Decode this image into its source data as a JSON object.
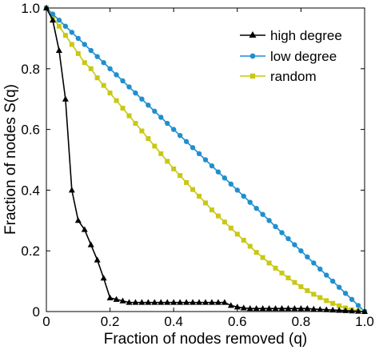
{
  "chart_data": {
    "type": "line",
    "title": "",
    "xlabel": "Fraction of nodes removed (q)",
    "ylabel": "Fraction of nodes S(q)",
    "xlim": [
      0,
      1
    ],
    "ylim": [
      0,
      1
    ],
    "xticks": [
      "0",
      "0.2",
      "0.4",
      "0.6",
      "0.8",
      "1.0"
    ],
    "yticks": [
      "0",
      "0.2",
      "0.4",
      "0.6",
      "0.8",
      "1.0"
    ],
    "grid": false,
    "legend_position": "top-right",
    "series": [
      {
        "name": "high degree",
        "color": "#000000",
        "marker": "triangle",
        "x": [
          0,
          0.02,
          0.04,
          0.06,
          0.08,
          0.1,
          0.12,
          0.14,
          0.16,
          0.18,
          0.2,
          0.22,
          0.24,
          0.26,
          0.28,
          0.3,
          0.32,
          0.34,
          0.36,
          0.38,
          0.4,
          0.42,
          0.44,
          0.46,
          0.48,
          0.5,
          0.52,
          0.54,
          0.56,
          0.58,
          0.6,
          0.62,
          0.64,
          0.66,
          0.68,
          0.7,
          0.72,
          0.74,
          0.76,
          0.78,
          0.8,
          0.82,
          0.84,
          0.86,
          0.88,
          0.9,
          0.92,
          0.94,
          0.96,
          0.98,
          1.0
        ],
        "y": [
          1.0,
          0.96,
          0.86,
          0.7,
          0.4,
          0.3,
          0.27,
          0.22,
          0.17,
          0.11,
          0.045,
          0.04,
          0.035,
          0.03,
          0.03,
          0.03,
          0.03,
          0.03,
          0.03,
          0.03,
          0.03,
          0.03,
          0.03,
          0.03,
          0.03,
          0.03,
          0.03,
          0.03,
          0.03,
          0.02,
          0.015,
          0.012,
          0.01,
          0.01,
          0.01,
          0.01,
          0.01,
          0.01,
          0.01,
          0.01,
          0.01,
          0.01,
          0.008,
          0.007,
          0.006,
          0.005,
          0.004,
          0.003,
          0.002,
          0.001,
          0.0
        ]
      },
      {
        "name": "low degree",
        "color": "#1f8fcf",
        "marker": "circle",
        "x": [
          0,
          0.02,
          0.04,
          0.06,
          0.08,
          0.1,
          0.12,
          0.14,
          0.16,
          0.18,
          0.2,
          0.22,
          0.24,
          0.26,
          0.28,
          0.3,
          0.32,
          0.34,
          0.36,
          0.38,
          0.4,
          0.42,
          0.44,
          0.46,
          0.48,
          0.5,
          0.52,
          0.54,
          0.56,
          0.58,
          0.6,
          0.62,
          0.64,
          0.66,
          0.68,
          0.7,
          0.72,
          0.74,
          0.76,
          0.78,
          0.8,
          0.82,
          0.84,
          0.86,
          0.88,
          0.9,
          0.92,
          0.94,
          0.96,
          0.98,
          1.0
        ],
        "y": [
          1.0,
          0.98,
          0.96,
          0.94,
          0.92,
          0.9,
          0.88,
          0.86,
          0.84,
          0.82,
          0.8,
          0.78,
          0.76,
          0.74,
          0.72,
          0.7,
          0.68,
          0.66,
          0.64,
          0.62,
          0.6,
          0.58,
          0.56,
          0.54,
          0.52,
          0.5,
          0.48,
          0.46,
          0.44,
          0.42,
          0.4,
          0.38,
          0.36,
          0.34,
          0.32,
          0.3,
          0.28,
          0.26,
          0.24,
          0.22,
          0.2,
          0.18,
          0.16,
          0.14,
          0.12,
          0.1,
          0.08,
          0.06,
          0.04,
          0.02,
          0.0
        ]
      },
      {
        "name": "random",
        "color": "#c8c814",
        "marker": "square",
        "x": [
          0,
          0.02,
          0.04,
          0.06,
          0.08,
          0.1,
          0.12,
          0.14,
          0.16,
          0.18,
          0.2,
          0.22,
          0.24,
          0.26,
          0.28,
          0.3,
          0.32,
          0.34,
          0.36,
          0.38,
          0.4,
          0.42,
          0.44,
          0.46,
          0.48,
          0.5,
          0.52,
          0.54,
          0.56,
          0.58,
          0.6,
          0.62,
          0.64,
          0.66,
          0.68,
          0.7,
          0.72,
          0.74,
          0.76,
          0.78,
          0.8,
          0.82,
          0.84,
          0.86,
          0.88,
          0.9,
          0.92,
          0.94,
          0.96,
          0.98,
          1.0
        ],
        "y": [
          1.0,
          0.97,
          0.94,
          0.91,
          0.88,
          0.85,
          0.82,
          0.8,
          0.77,
          0.745,
          0.72,
          0.695,
          0.67,
          0.645,
          0.62,
          0.595,
          0.57,
          0.545,
          0.52,
          0.495,
          0.47,
          0.448,
          0.425,
          0.402,
          0.38,
          0.358,
          0.335,
          0.315,
          0.295,
          0.275,
          0.255,
          0.235,
          0.215,
          0.195,
          0.178,
          0.16,
          0.143,
          0.127,
          0.111,
          0.096,
          0.082,
          0.069,
          0.057,
          0.046,
          0.036,
          0.027,
          0.019,
          0.012,
          0.006,
          0.002,
          0.0
        ]
      }
    ]
  }
}
